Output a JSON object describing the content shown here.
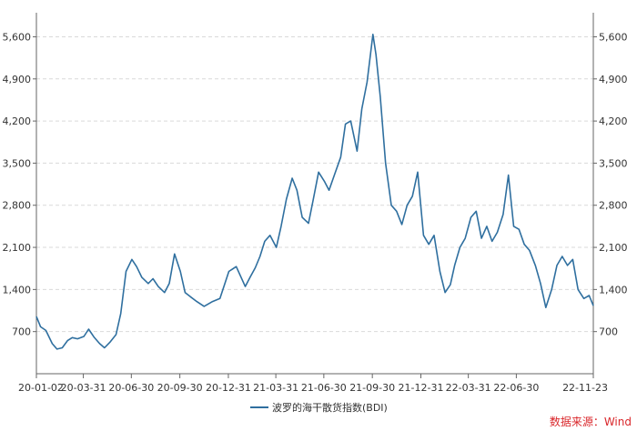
{
  "chart_data": {
    "type": "line",
    "title": "",
    "xlabel": "",
    "ylabel": "",
    "ylim": [
      0,
      6000
    ],
    "y_ticks": [
      700,
      1400,
      2100,
      2800,
      3500,
      4200,
      4900,
      5600
    ],
    "y_tick_labels": [
      "700",
      "1,400",
      "2,100",
      "2,800",
      "3,500",
      "4,200",
      "4,900",
      "5,600"
    ],
    "x_range": [
      "2020-01-02",
      "2022-11-23"
    ],
    "x_ticks": [
      "2020-01-02",
      "2020-03-31",
      "2020-06-30",
      "2020-09-30",
      "2020-12-31",
      "2021-03-31",
      "2021-06-30",
      "2021-09-30",
      "2021-12-31",
      "2022-03-31",
      "2022-06-30",
      "2022-11-23"
    ],
    "x_tick_labels": [
      "20-01-02",
      "20-03-31",
      "20-06-30",
      "20-09-30",
      "20-12-31",
      "21-03-31",
      "21-06-30",
      "21-09-30",
      "21-12-31",
      "22-03-31",
      "22-06-30",
      "22-11-23"
    ],
    "grid": true,
    "dual_y_axis": true,
    "legend_position": "bottom",
    "line_color": "#2f6f9f",
    "series": [
      {
        "name": "波罗的海干散货指数(BDI)",
        "x": [
          "2020-01-02",
          "2020-01-10",
          "2020-01-20",
          "2020-02-01",
          "2020-02-10",
          "2020-02-20",
          "2020-03-01",
          "2020-03-10",
          "2020-03-20",
          "2020-04-01",
          "2020-04-10",
          "2020-04-20",
          "2020-05-01",
          "2020-05-10",
          "2020-05-20",
          "2020-06-01",
          "2020-06-10",
          "2020-06-20",
          "2020-07-01",
          "2020-07-10",
          "2020-07-20",
          "2020-08-01",
          "2020-08-10",
          "2020-08-20",
          "2020-09-01",
          "2020-09-10",
          "2020-09-20",
          "2020-10-01",
          "2020-10-10",
          "2020-10-20",
          "2020-11-01",
          "2020-11-15",
          "2020-12-01",
          "2020-12-15",
          "2021-01-01",
          "2021-01-15",
          "2021-02-01",
          "2021-02-10",
          "2021-02-20",
          "2021-03-01",
          "2021-03-10",
          "2021-03-20",
          "2021-04-01",
          "2021-04-10",
          "2021-04-20",
          "2021-05-01",
          "2021-05-10",
          "2021-05-20",
          "2021-06-01",
          "2021-06-10",
          "2021-06-20",
          "2021-07-01",
          "2021-07-10",
          "2021-07-20",
          "2021-08-01",
          "2021-08-10",
          "2021-08-20",
          "2021-09-01",
          "2021-09-10",
          "2021-09-20",
          "2021-10-01",
          "2021-10-07",
          "2021-10-15",
          "2021-10-25",
          "2021-11-05",
          "2021-11-15",
          "2021-11-25",
          "2021-12-05",
          "2021-12-15",
          "2021-12-25",
          "2022-01-05",
          "2022-01-15",
          "2022-01-25",
          "2022-02-05",
          "2022-02-15",
          "2022-02-25",
          "2022-03-05",
          "2022-03-15",
          "2022-03-25",
          "2022-04-05",
          "2022-04-15",
          "2022-04-25",
          "2022-05-05",
          "2022-05-15",
          "2022-05-25",
          "2022-06-05",
          "2022-06-15",
          "2022-06-25",
          "2022-07-05",
          "2022-07-15",
          "2022-07-25",
          "2022-08-05",
          "2022-08-15",
          "2022-08-25",
          "2022-09-05",
          "2022-09-15",
          "2022-09-25",
          "2022-10-05",
          "2022-10-15",
          "2022-10-25",
          "2022-11-05",
          "2022-11-15",
          "2022-11-23"
        ],
        "values": [
          950,
          780,
          720,
          500,
          410,
          430,
          550,
          600,
          580,
          620,
          740,
          610,
          500,
          430,
          520,
          650,
          1000,
          1700,
          1900,
          1780,
          1600,
          1500,
          1580,
          1450,
          1350,
          1500,
          1990,
          1700,
          1350,
          1280,
          1200,
          1120,
          1200,
          1250,
          1700,
          1780,
          1450,
          1600,
          1760,
          1950,
          2200,
          2300,
          2100,
          2450,
          2900,
          3250,
          3050,
          2600,
          2500,
          2900,
          3350,
          3200,
          3050,
          3300,
          3600,
          4150,
          4200,
          3700,
          4400,
          4850,
          5640,
          5300,
          4600,
          3500,
          2800,
          2700,
          2480,
          2800,
          2950,
          3350,
          2300,
          2150,
          2300,
          1700,
          1350,
          1480,
          1800,
          2100,
          2250,
          2600,
          2700,
          2250,
          2450,
          2200,
          2350,
          2650,
          3300,
          2450,
          2400,
          2150,
          2050,
          1800,
          1500,
          1100,
          1400,
          1800,
          1950,
          1800,
          1900,
          1400,
          1250,
          1300,
          1130
        ]
      }
    ]
  },
  "legend": {
    "label": "波罗的海干散货指数(BDI)"
  },
  "source": {
    "label": "数据来源：Wind"
  }
}
